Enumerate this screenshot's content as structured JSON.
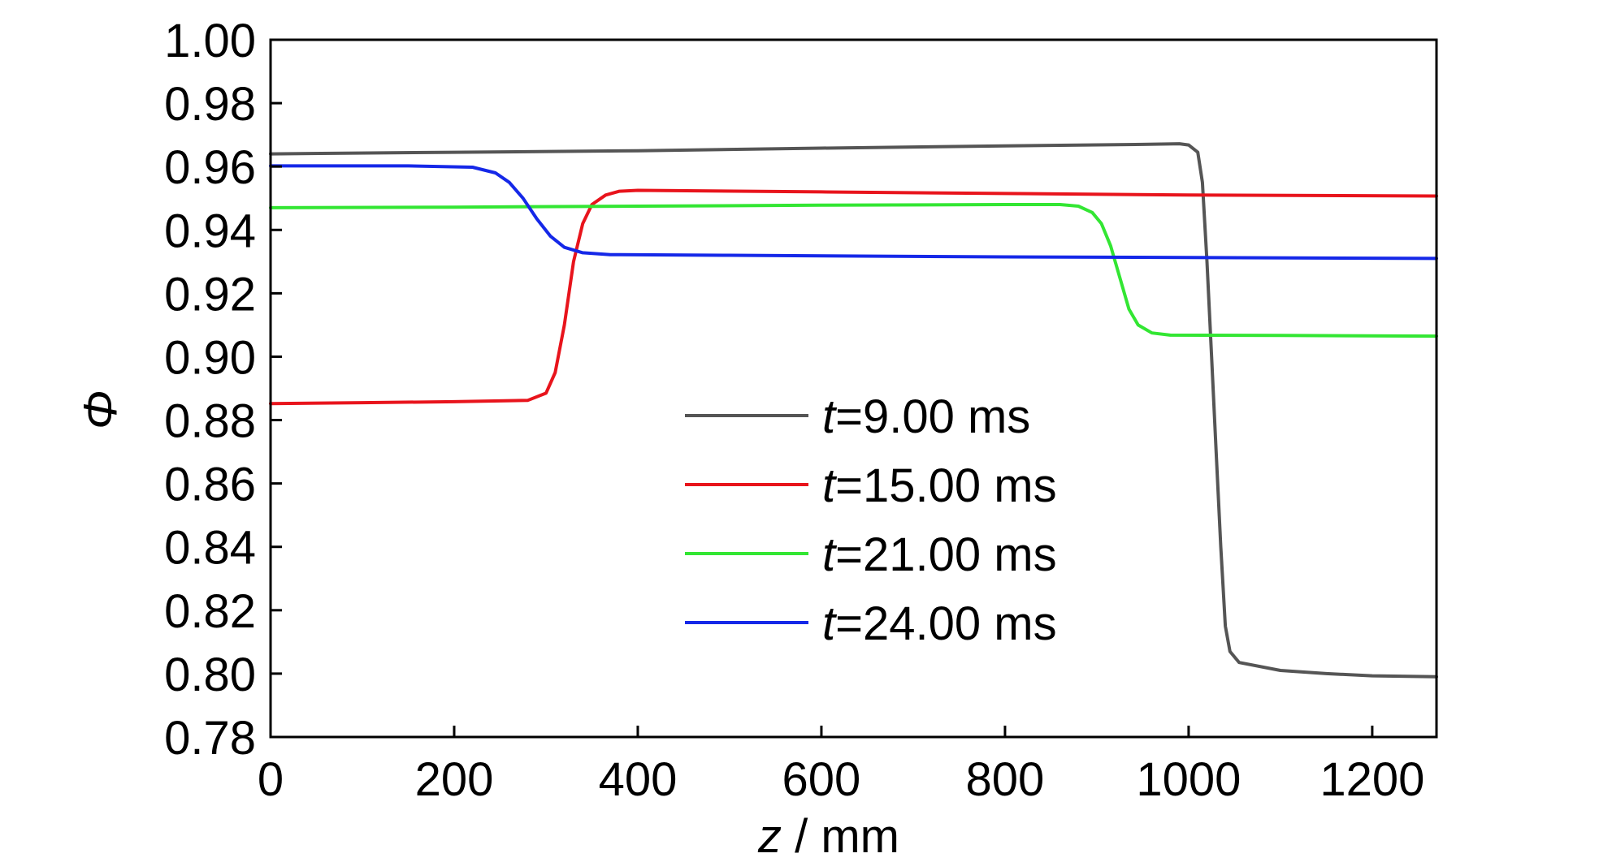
{
  "chart_data": {
    "type": "line",
    "title": "",
    "xlabel_var": "z",
    "xlabel_unit": " / mm",
    "ylabel": "Φ",
    "xlim": [
      0,
      1270
    ],
    "ylim": [
      0.78,
      1.0
    ],
    "xticks": [
      0,
      200,
      400,
      600,
      800,
      1000,
      1200
    ],
    "xtick_labels": [
      "0",
      "200",
      "400",
      "600",
      "800",
      "1000",
      "1200"
    ],
    "yticks": [
      0.78,
      0.8,
      0.82,
      0.84,
      0.86,
      0.88,
      0.9,
      0.92,
      0.94,
      0.96,
      0.98,
      1.0
    ],
    "ytick_labels": [
      "0.78",
      "0.80",
      "0.82",
      "0.84",
      "0.86",
      "0.88",
      "0.90",
      "0.92",
      "0.94",
      "0.96",
      "0.98",
      "1.00"
    ],
    "grid": false,
    "legend_position": "center",
    "series": [
      {
        "name": "t=9.00 ms",
        "name_var": "t",
        "name_rest": "=9.00 ms",
        "color": "#555555",
        "points": [
          [
            0,
            0.964
          ],
          [
            200,
            0.9645
          ],
          [
            400,
            0.965
          ],
          [
            600,
            0.9658
          ],
          [
            800,
            0.9665
          ],
          [
            950,
            0.967
          ],
          [
            990,
            0.9672
          ],
          [
            1000,
            0.9668
          ],
          [
            1010,
            0.9645
          ],
          [
            1015,
            0.955
          ],
          [
            1020,
            0.93
          ],
          [
            1025,
            0.9
          ],
          [
            1030,
            0.87
          ],
          [
            1035,
            0.84
          ],
          [
            1040,
            0.815
          ],
          [
            1045,
            0.807
          ],
          [
            1055,
            0.8035
          ],
          [
            1100,
            0.801
          ],
          [
            1150,
            0.8
          ],
          [
            1200,
            0.7993
          ],
          [
            1270,
            0.799
          ]
        ]
      },
      {
        "name": "t=15.00 ms",
        "name_var": "t",
        "name_rest": "=15.00 ms",
        "color": "#e8141c",
        "points": [
          [
            0,
            0.8852
          ],
          [
            100,
            0.8855
          ],
          [
            200,
            0.8858
          ],
          [
            280,
            0.8862
          ],
          [
            300,
            0.8885
          ],
          [
            310,
            0.895
          ],
          [
            320,
            0.91
          ],
          [
            330,
            0.93
          ],
          [
            340,
            0.942
          ],
          [
            350,
            0.948
          ],
          [
            365,
            0.951
          ],
          [
            380,
            0.9522
          ],
          [
            400,
            0.9525
          ],
          [
            600,
            0.952
          ],
          [
            800,
            0.9515
          ],
          [
            1000,
            0.951
          ],
          [
            1270,
            0.9507
          ]
        ]
      },
      {
        "name": "t=21.00 ms",
        "name_var": "t",
        "name_rest": "=21.00 ms",
        "color": "#33e633",
        "points": [
          [
            0,
            0.947
          ],
          [
            200,
            0.9472
          ],
          [
            400,
            0.9475
          ],
          [
            600,
            0.9478
          ],
          [
            800,
            0.948
          ],
          [
            860,
            0.948
          ],
          [
            880,
            0.9475
          ],
          [
            895,
            0.9455
          ],
          [
            905,
            0.942
          ],
          [
            915,
            0.935
          ],
          [
            925,
            0.925
          ],
          [
            935,
            0.915
          ],
          [
            945,
            0.91
          ],
          [
            960,
            0.9075
          ],
          [
            980,
            0.9068
          ],
          [
            1100,
            0.9067
          ],
          [
            1270,
            0.9065
          ]
        ]
      },
      {
        "name": "t=24.00 ms",
        "name_var": "t",
        "name_rest": "=24.00 ms",
        "color": "#1528e8",
        "points": [
          [
            0,
            0.9602
          ],
          [
            150,
            0.9602
          ],
          [
            220,
            0.9598
          ],
          [
            245,
            0.958
          ],
          [
            260,
            0.955
          ],
          [
            275,
            0.95
          ],
          [
            290,
            0.9435
          ],
          [
            305,
            0.938
          ],
          [
            320,
            0.9345
          ],
          [
            340,
            0.9328
          ],
          [
            370,
            0.9322
          ],
          [
            500,
            0.932
          ],
          [
            800,
            0.9315
          ],
          [
            1000,
            0.9313
          ],
          [
            1270,
            0.931
          ]
        ]
      }
    ]
  }
}
